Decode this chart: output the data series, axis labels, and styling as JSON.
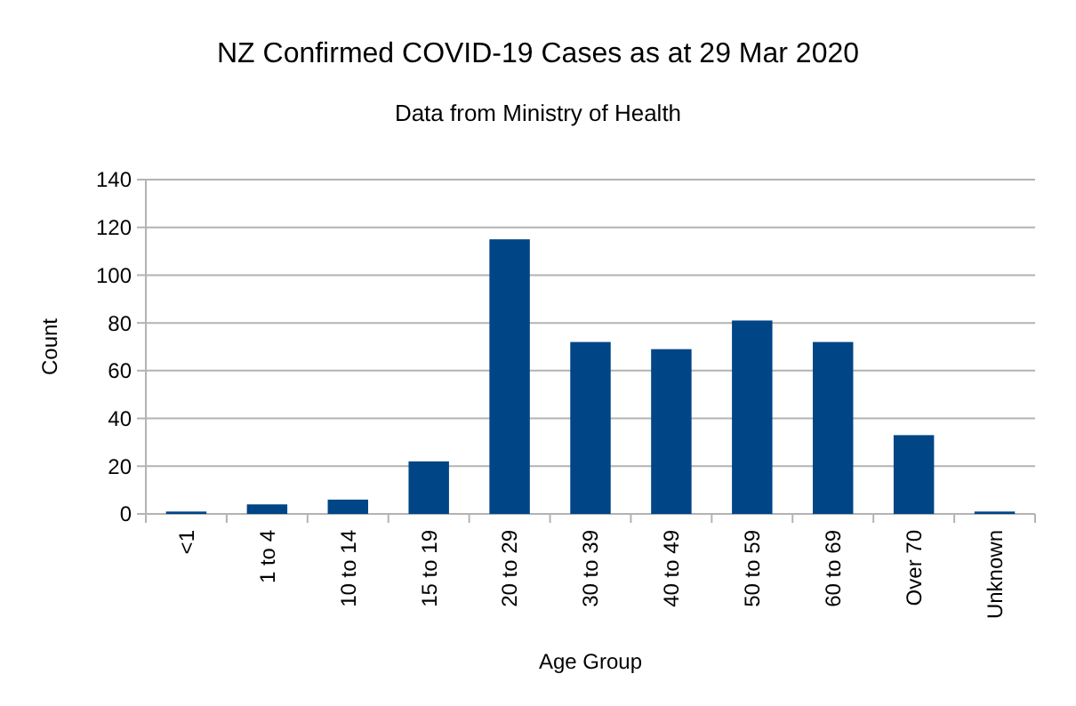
{
  "chart_data": {
    "type": "bar",
    "title": "NZ Confirmed COVID-19 Cases as at 29 Mar 2020",
    "subtitle": "Data from Ministry of Health",
    "xlabel": "Age Group",
    "ylabel": "Count",
    "categories": [
      "<1",
      "1 to 4",
      "10 to 14",
      "15 to 19",
      "20 to 29",
      "30 to 39",
      "40 to 49",
      "50 to 59",
      "60 to 69",
      "Over 70",
      "Unknown"
    ],
    "values": [
      1,
      4,
      6,
      22,
      115,
      72,
      69,
      81,
      72,
      33,
      1
    ],
    "color": "#004586",
    "ylim": [
      0,
      140
    ],
    "yticks": [
      0,
      20,
      40,
      60,
      80,
      100,
      120,
      140
    ],
    "grid": "y"
  }
}
